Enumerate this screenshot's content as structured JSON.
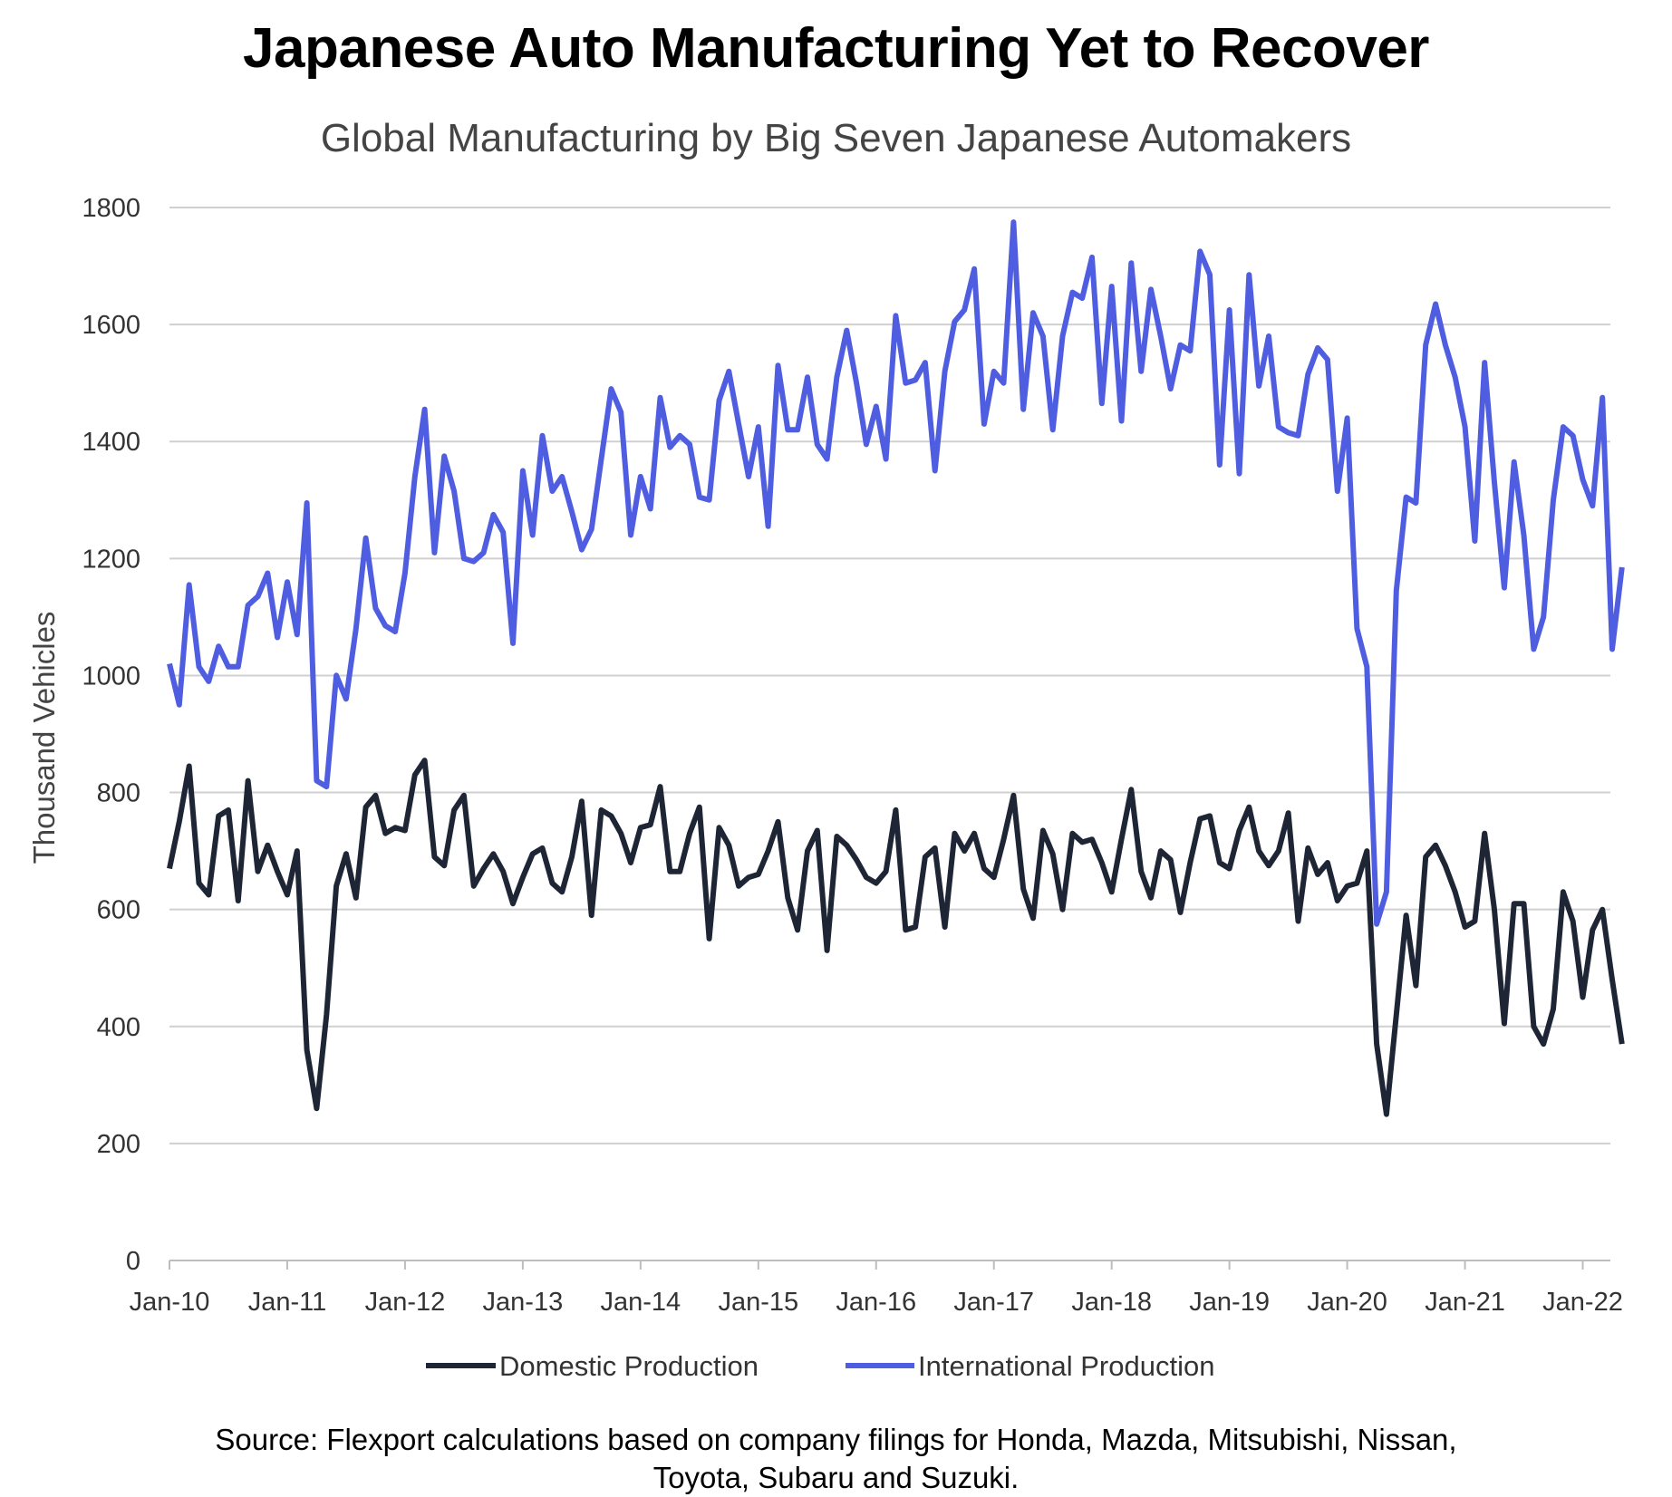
{
  "chart_data": {
    "type": "line",
    "title": "Japanese Auto Manufacturing Yet to Recover",
    "subtitle": "Global Manufacturing by Big Seven Japanese Automakers",
    "xlabel": "",
    "ylabel": "Thousand Vehicles",
    "ylim": [
      0,
      1800
    ],
    "yticks": [
      "0",
      "200",
      "400",
      "600",
      "800",
      "1000",
      "1200",
      "1400",
      "1600",
      "1800"
    ],
    "xticks": [
      "Jan-10",
      "Jan-11",
      "Jan-12",
      "Jan-13",
      "Jan-14",
      "Jan-15",
      "Jan-16",
      "Jan-17",
      "Jan-18",
      "Jan-19",
      "Jan-20",
      "Jan-21",
      "Jan-22"
    ],
    "x_start": "Jan-10",
    "grid": true,
    "legend_position": "bottom",
    "series": [
      {
        "name": "Domestic Production",
        "color": "#1e2535",
        "values": [
          670,
          750,
          845,
          645,
          625,
          760,
          770,
          615,
          820,
          665,
          710,
          665,
          625,
          700,
          360,
          260,
          420,
          640,
          695,
          620,
          775,
          795,
          730,
          740,
          735,
          830,
          855,
          690,
          675,
          770,
          795,
          640,
          670,
          695,
          665,
          610,
          655,
          695,
          705,
          645,
          630,
          690,
          785,
          590,
          770,
          760,
          730,
          680,
          740,
          745,
          810,
          665,
          665,
          730,
          775,
          550,
          740,
          710,
          640,
          655,
          660,
          700,
          750,
          620,
          565,
          700,
          735,
          530,
          725,
          710,
          685,
          655,
          645,
          665,
          770,
          565,
          570,
          690,
          705,
          570,
          730,
          700,
          730,
          670,
          655,
          720,
          795,
          635,
          585,
          735,
          695,
          600,
          730,
          715,
          720,
          680,
          630,
          720,
          805,
          665,
          620,
          700,
          685,
          595,
          680,
          755,
          760,
          680,
          670,
          735,
          775,
          700,
          675,
          700,
          765,
          580,
          705,
          660,
          680,
          615,
          640,
          645,
          700,
          370,
          250,
          420,
          590,
          470,
          690,
          710,
          675,
          630,
          570,
          580,
          730,
          600,
          405,
          610,
          610,
          400,
          370,
          430,
          630,
          580,
          450,
          565,
          600,
          480,
          370
        ]
      },
      {
        "name": "International Production",
        "color": "#4f5de0",
        "values": [
          1020,
          950,
          1155,
          1015,
          990,
          1050,
          1015,
          1015,
          1120,
          1135,
          1175,
          1065,
          1160,
          1070,
          1295,
          820,
          810,
          1000,
          960,
          1080,
          1235,
          1115,
          1085,
          1075,
          1175,
          1340,
          1455,
          1210,
          1375,
          1315,
          1200,
          1195,
          1210,
          1275,
          1245,
          1055,
          1350,
          1240,
          1410,
          1315,
          1340,
          1280,
          1215,
          1250,
          1370,
          1490,
          1450,
          1240,
          1340,
          1285,
          1475,
          1390,
          1410,
          1395,
          1305,
          1300,
          1470,
          1520,
          1430,
          1340,
          1425,
          1255,
          1530,
          1420,
          1420,
          1510,
          1395,
          1370,
          1510,
          1590,
          1500,
          1395,
          1460,
          1370,
          1615,
          1500,
          1505,
          1535,
          1350,
          1520,
          1605,
          1625,
          1695,
          1430,
          1520,
          1500,
          1775,
          1455,
          1620,
          1580,
          1420,
          1580,
          1655,
          1645,
          1715,
          1465,
          1665,
          1435,
          1705,
          1520,
          1660,
          1580,
          1490,
          1565,
          1555,
          1725,
          1685,
          1360,
          1625,
          1345,
          1685,
          1495,
          1580,
          1425,
          1415,
          1410,
          1515,
          1560,
          1540,
          1315,
          1440,
          1080,
          1015,
          575,
          630,
          1145,
          1305,
          1295,
          1565,
          1635,
          1565,
          1510,
          1425,
          1230,
          1535,
          1330,
          1150,
          1365,
          1240,
          1045,
          1100,
          1300,
          1425,
          1410,
          1335,
          1290,
          1475,
          1045,
          1185
        ]
      }
    ]
  },
  "source_lines": [
    "Source: Flexport calculations based on company filings for Honda, Mazda, Mitsubishi, Nissan,",
    "Toyota, Subaru and Suzuki."
  ]
}
